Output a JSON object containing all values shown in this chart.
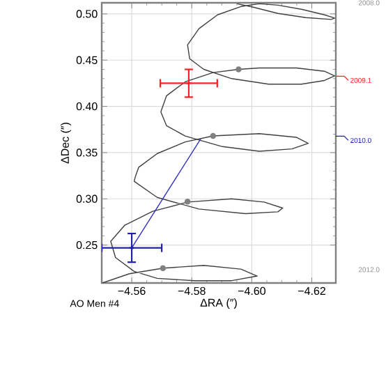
{
  "chart_data": {
    "type": "line",
    "xlabel": "ΔRA (″)",
    "ylabel": "ΔDec (″)",
    "annotations": [
      "AO Men #4"
    ],
    "xlim": [
      -4.55,
      -4.628
    ],
    "ylim": [
      0.209,
      0.512
    ],
    "y2lim": [
      2012.2,
      2008.0
    ],
    "xticks": [
      {
        "value": -4.56,
        "label": "−4.56"
      },
      {
        "value": -4.58,
        "label": "−4.58"
      },
      {
        "value": -4.6,
        "label": "−4.60"
      },
      {
        "value": -4.62,
        "label": "−4.62"
      }
    ],
    "yticks": [
      {
        "value": 0.25,
        "label": "0.25"
      },
      {
        "value": 0.3,
        "label": "0.30"
      },
      {
        "value": 0.35,
        "label": "0.35"
      },
      {
        "value": 0.4,
        "label": "0.40"
      },
      {
        "value": 0.45,
        "label": "0.45"
      },
      {
        "value": 0.5,
        "label": "0.50"
      }
    ],
    "y2ticks": [
      {
        "value": 2008.0,
        "label": "2008.0"
      },
      {
        "value": 2012.0,
        "label": "2012.0"
      }
    ],
    "grid": true,
    "ref_lines": [
      {
        "axis": "y2",
        "value": 2009.1,
        "label": "2009.1",
        "color": "#ff2020"
      },
      {
        "axis": "y2",
        "value": 2010.0,
        "label": "2010.0",
        "color": "#2020b0"
      }
    ],
    "series": [
      {
        "color": "#404040",
        "x": [
          -4.5951,
          -4.6002,
          -4.6087,
          -4.618,
          -4.6265,
          -4.6276,
          -4.6242,
          -4.6165,
          -4.6087,
          -4.6025,
          -4.5964,
          -4.5886,
          -4.5824,
          -4.5786,
          -4.5793,
          -4.584,
          -4.5933,
          -4.6056,
          -4.6165,
          -4.6242,
          -4.6276,
          -4.6242,
          -4.6149,
          -4.6025,
          -4.5956,
          -4.5871,
          -4.5778,
          -4.5716,
          -4.5697,
          -4.5716,
          -4.5778,
          -4.5902,
          -4.6025,
          -4.6134,
          -4.6188,
          -4.6149,
          -4.6025,
          -4.5871,
          -4.5778,
          -4.5685,
          -4.5623,
          -4.5612,
          -4.5608,
          -4.5685,
          -4.5824,
          -4.5979,
          -4.6087,
          -4.6103,
          -4.6041,
          -4.5933,
          -4.5786,
          -4.567,
          -4.5577,
          -4.553,
          -4.5546,
          -4.5608,
          -4.5685,
          -4.5809,
          -4.5933,
          -4.6018,
          -4.5964,
          -4.584,
          -4.5704,
          -4.5592,
          -4.5502
        ],
        "values": [
          0.511,
          0.5075,
          0.5005,
          0.496,
          0.494,
          0.4955,
          0.499,
          0.505,
          0.5095,
          0.511,
          0.508,
          0.499,
          0.484,
          0.4665,
          0.4515,
          0.44,
          0.43,
          0.424,
          0.424,
          0.428,
          0.433,
          0.438,
          0.4415,
          0.4415,
          0.44,
          0.4365,
          0.4265,
          0.4115,
          0.394,
          0.379,
          0.368,
          0.3565,
          0.3515,
          0.354,
          0.36,
          0.3665,
          0.3705,
          0.368,
          0.3615,
          0.349,
          0.334,
          0.324,
          0.319,
          0.3015,
          0.289,
          0.284,
          0.286,
          0.29,
          0.2965,
          0.3,
          0.2965,
          0.2865,
          0.2715,
          0.254,
          0.2365,
          0.2215,
          0.214,
          0.2115,
          0.2115,
          0.2165,
          0.224,
          0.228,
          0.225,
          0.219,
          0.209
        ]
      },
      {
        "type": "scatter",
        "marker": "circle",
        "color": "#808080",
        "x": [
          -4.5956,
          -4.5871,
          -4.5786,
          -4.5704
        ],
        "values": [
          0.44,
          0.368,
          0.297,
          0.225
        ]
      },
      {
        "color": "#3030c0",
        "x": [
          -4.56,
          -4.583
        ],
        "values": [
          0.247,
          0.365
        ]
      },
      {
        "type": "scatter",
        "marker": "cross",
        "color": "#ff2020",
        "x": [
          -4.579
        ],
        "values": [
          0.425
        ],
        "errors": [
          0.015
        ],
        "xerrors": [
          0.0095
        ]
      },
      {
        "type": "scatter",
        "marker": "cross",
        "color": "#2020b0",
        "x": [
          -4.56
        ],
        "values": [
          0.247
        ],
        "errors": [
          0.0155
        ],
        "xerrors": [
          0.01
        ]
      }
    ]
  }
}
